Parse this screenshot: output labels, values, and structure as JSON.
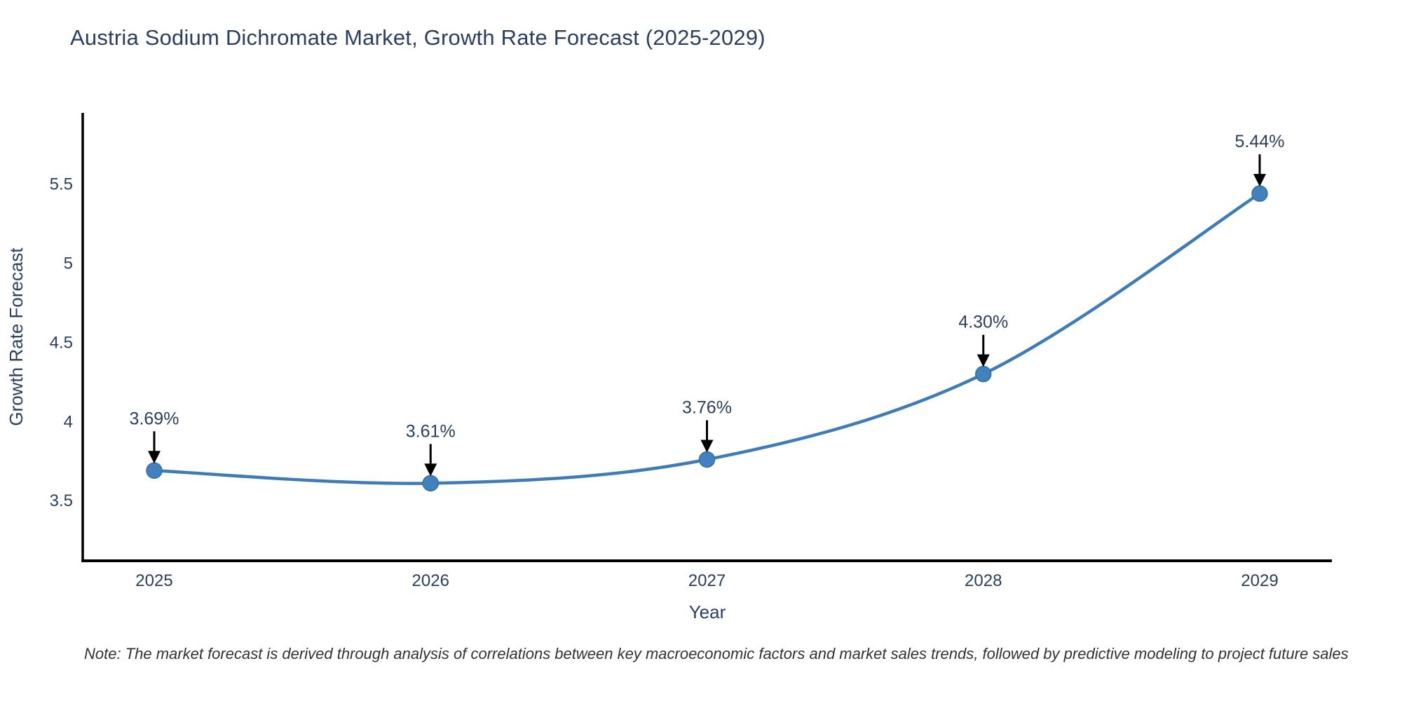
{
  "title": "Austria Sodium Dichromate Market, Growth Rate Forecast (2025-2029)",
  "note": "Note: The market forecast is derived through analysis of correlations between key macroeconomic factors and market sales trends, followed by predictive modeling to project future sales",
  "chart_data": {
    "type": "line",
    "line_shape": "spline",
    "title": "Austria Sodium Dichromate Market, Growth Rate Forecast (2025-2029)",
    "xlabel": "Year",
    "ylabel": "Growth Rate Forecast",
    "categories": [
      "2025",
      "2026",
      "2027",
      "2028",
      "2029"
    ],
    "x": [
      2025,
      2026,
      2027,
      2028,
      2029
    ],
    "values": [
      3.69,
      3.61,
      3.76,
      4.3,
      5.44
    ],
    "point_labels": [
      "3.69%",
      "3.61%",
      "3.76%",
      "4.30%",
      "5.44%"
    ],
    "ytick_labels": [
      "3.5",
      "4",
      "4.5",
      "5",
      "5.5"
    ],
    "yticks": [
      3.5,
      4.0,
      4.5,
      5.0,
      5.5
    ],
    "ylim": [
      3.12,
      5.95
    ],
    "grid": false,
    "legend_position": "none",
    "colors": {
      "line": "#3f7cb6",
      "marker_fill": "#4181bd",
      "marker_stroke": "#38719f",
      "axis_line": "#000000",
      "tick_text": "#2a3f5f",
      "title_text": "#2a3f5f",
      "annotation_text": "#2a3f5f",
      "annotation_arrow": "#000000",
      "note_text": "#2f3338",
      "background": "#ffffff"
    }
  }
}
